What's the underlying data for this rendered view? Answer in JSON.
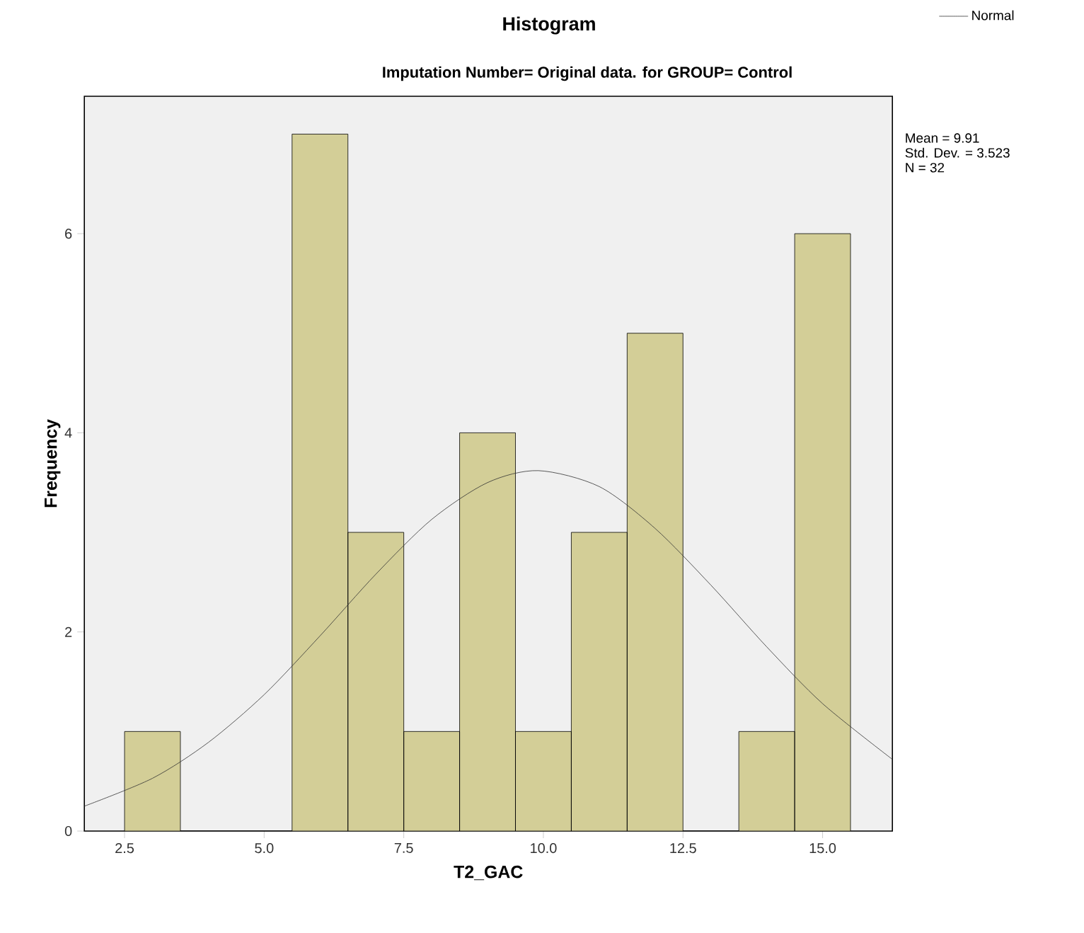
{
  "chart_data": {
    "type": "histogram",
    "title": "Histogram",
    "subtitle": "Imputation Number= Original data.  for GROUP= Control",
    "xlabel": "T2_GAC",
    "ylabel": "Frequency",
    "bins": [
      2.5,
      3.5,
      4.5,
      5.5,
      6.5,
      7.5,
      8.5,
      9.5,
      10.5,
      11.5,
      12.5,
      13.5,
      14.5,
      15.5
    ],
    "values": [
      1,
      0,
      0,
      7,
      3,
      1,
      4,
      1,
      3,
      5,
      0,
      1,
      6
    ],
    "color": "#d3ce97",
    "series": [
      {
        "type": "line",
        "name": "Normal",
        "color": "#333333",
        "x": [
          1.78,
          3,
          4,
          5,
          6,
          7,
          8,
          9,
          9.91,
          11,
          12,
          13,
          14,
          15,
          16.25
        ],
        "values": [
          0.25,
          0.53,
          0.89,
          1.37,
          1.96,
          2.58,
          3.13,
          3.5,
          3.62,
          3.46,
          3.04,
          2.47,
          1.85,
          1.28,
          0.72
        ]
      }
    ],
    "annotations": [
      "Mean = 9.91",
      "Std. Dev. = 3.523",
      "N = 32"
    ],
    "xlim": [
      1.78,
      16.25
    ],
    "ylim": [
      0,
      7.38
    ],
    "xticks": [
      2.5,
      {
        "value": 5,
        "label": "5.0"
      },
      7.5,
      {
        "value": 10,
        "label": "10.0"
      },
      12.5,
      {
        "value": 15,
        "label": "15.0"
      }
    ],
    "yticks": [
      0,
      2,
      4,
      6
    ],
    "legend": "top right",
    "grid": false,
    "marker": "none"
  }
}
